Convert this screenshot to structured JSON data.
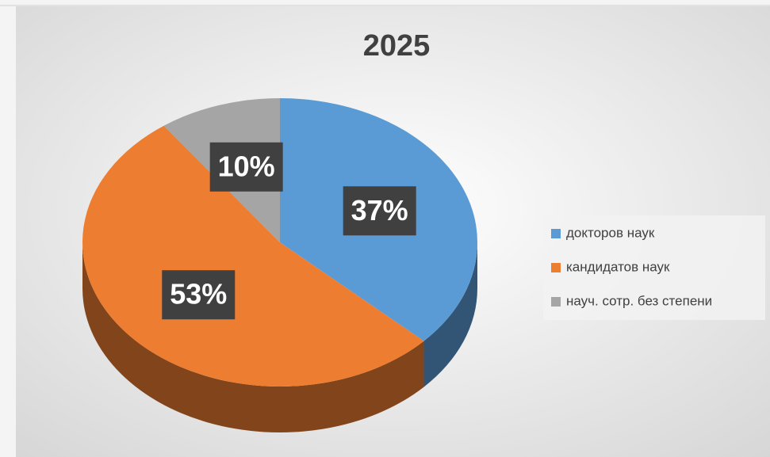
{
  "chart_data": {
    "type": "pie",
    "title": "2025",
    "categories": [
      "докторов наук",
      "кандидатов наук",
      "науч. сотр. без степени"
    ],
    "values": [
      37,
      53,
      10
    ],
    "value_labels": [
      "37%",
      "53%",
      "10%"
    ],
    "colors": [
      "#5b9bd5",
      "#ed7d31",
      "#a5a5a5"
    ],
    "legend": "right"
  }
}
